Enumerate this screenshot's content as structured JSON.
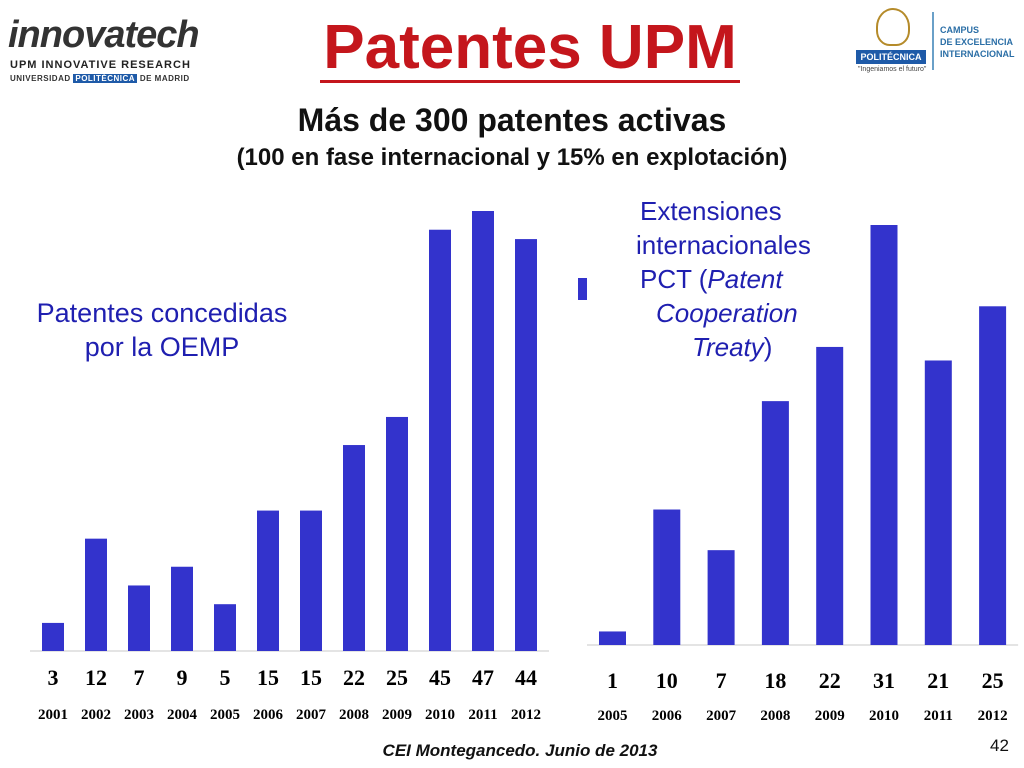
{
  "header": {
    "logo_left": {
      "name": "innovatech",
      "line1": "UPM INNOVATIVE RESEARCH",
      "line2_pre": "UNIVERSIDAD",
      "line2_hl": "POLITÉCNICA",
      "line2_post": "DE MADRID"
    },
    "logo_right": {
      "poli": "POLITÉCNICA",
      "tagline": "\"Ingeniamos el futuro\"",
      "campus_lines": [
        "CAMPUS",
        "DE EXCELENCIA",
        "INTERNACIONAL"
      ]
    }
  },
  "title": "Patentes UPM",
  "subtitle1": "Más de 300 patentes activas",
  "subtitle2": "(100 en fase internacional y 15% en explotación)",
  "chart_data": [
    {
      "type": "bar",
      "title": "Patentes concedidas por la OEMP",
      "label_lines": [
        "Patentes concedidas",
        "por la OEMP"
      ],
      "categories": [
        "2001",
        "2002",
        "2003",
        "2004",
        "2005",
        "2006",
        "2007",
        "2008",
        "2009",
        "2010",
        "2011",
        "2012"
      ],
      "values": [
        3,
        12,
        7,
        9,
        5,
        15,
        15,
        22,
        25,
        45,
        47,
        44
      ],
      "color": "#3333cc",
      "ylim": [
        0,
        47
      ]
    },
    {
      "type": "bar",
      "title": "Extensiones internacionales PCT (Patent Cooperation Treaty)",
      "label_lines": [
        {
          "text": "Extensiones",
          "italic": false
        },
        {
          "text": "internacionales",
          "italic": false
        },
        {
          "text": "PCT (",
          "italic": false,
          "append": "Patent"
        },
        {
          "text": "Cooperation",
          "italic": true
        },
        {
          "text": "Treaty",
          "italic": true,
          "append_plain": ")"
        }
      ],
      "categories": [
        "2005",
        "2006",
        "2007",
        "2008",
        "2009",
        "2010",
        "2011",
        "2012"
      ],
      "values": [
        1,
        10,
        7,
        18,
        22,
        31,
        21,
        25
      ],
      "color": "#3333cc",
      "ylim": [
        0,
        31
      ]
    }
  ],
  "footer": "CEI Montegancedo. Junio de 2013",
  "page_number": "42"
}
